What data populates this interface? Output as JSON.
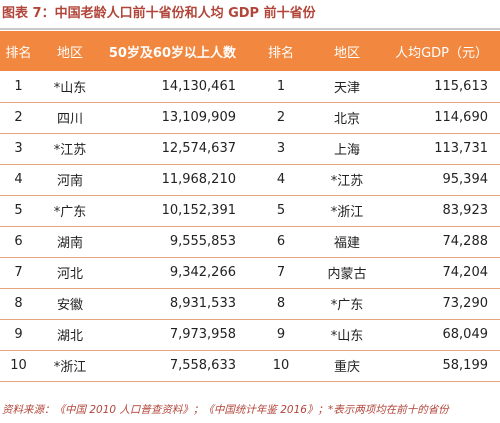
{
  "title": "图表 7：中国老龄人口前十省份和人均 GDP 前十省份",
  "table": {
    "headers": {
      "rank_left": "排名",
      "region_left": "地区",
      "value_left": "50岁及60岁以上人数",
      "rank_right": "排名",
      "region_right": "地区",
      "value_right": "人均GDP（元）"
    },
    "rows": [
      {
        "rank_l": "1",
        "region_l": "*山东",
        "value_l": "14,130,461",
        "rank_r": "1",
        "region_r": "天津",
        "value_r": "115,613"
      },
      {
        "rank_l": "2",
        "region_l": "四川",
        "value_l": "13,109,909",
        "rank_r": "2",
        "region_r": "北京",
        "value_r": "114,690"
      },
      {
        "rank_l": "3",
        "region_l": "*江苏",
        "value_l": "12,574,637",
        "rank_r": "3",
        "region_r": "上海",
        "value_r": "113,731"
      },
      {
        "rank_l": "4",
        "region_l": "河南",
        "value_l": "11,968,210",
        "rank_r": "4",
        "region_r": "*江苏",
        "value_r": "95,394"
      },
      {
        "rank_l": "5",
        "region_l": "*广东",
        "value_l": "10,152,391",
        "rank_r": "5",
        "region_r": "*浙江",
        "value_r": "83,923"
      },
      {
        "rank_l": "6",
        "region_l": "湖南",
        "value_l": "9,555,853",
        "rank_r": "6",
        "region_r": "福建",
        "value_r": "74,288"
      },
      {
        "rank_l": "7",
        "region_l": "河北",
        "value_l": "9,342,266",
        "rank_r": "7",
        "region_r": "内蒙古",
        "value_r": "74,204"
      },
      {
        "rank_l": "8",
        "region_l": "安徽",
        "value_l": "8,931,533",
        "rank_r": "8",
        "region_r": "*广东",
        "value_r": "73,290"
      },
      {
        "rank_l": "9",
        "region_l": "湖北",
        "value_l": "7,973,958",
        "rank_r": "9",
        "region_r": "*山东",
        "value_r": "68,049"
      },
      {
        "rank_l": "10",
        "region_l": "*浙江",
        "value_l": "7,558,633",
        "rank_r": "10",
        "region_r": "重庆",
        "value_r": "58,199"
      }
    ]
  },
  "footnote": "资料来源：《中国 2010 人口普查资料》；《中国统计年鉴 2016》；*表示两项均在前十的省份",
  "colors": {
    "header_bg": "#f2883f",
    "header_text": "#ffffff",
    "title_text": "#b2453a",
    "row_divider": "#e3a47a"
  }
}
